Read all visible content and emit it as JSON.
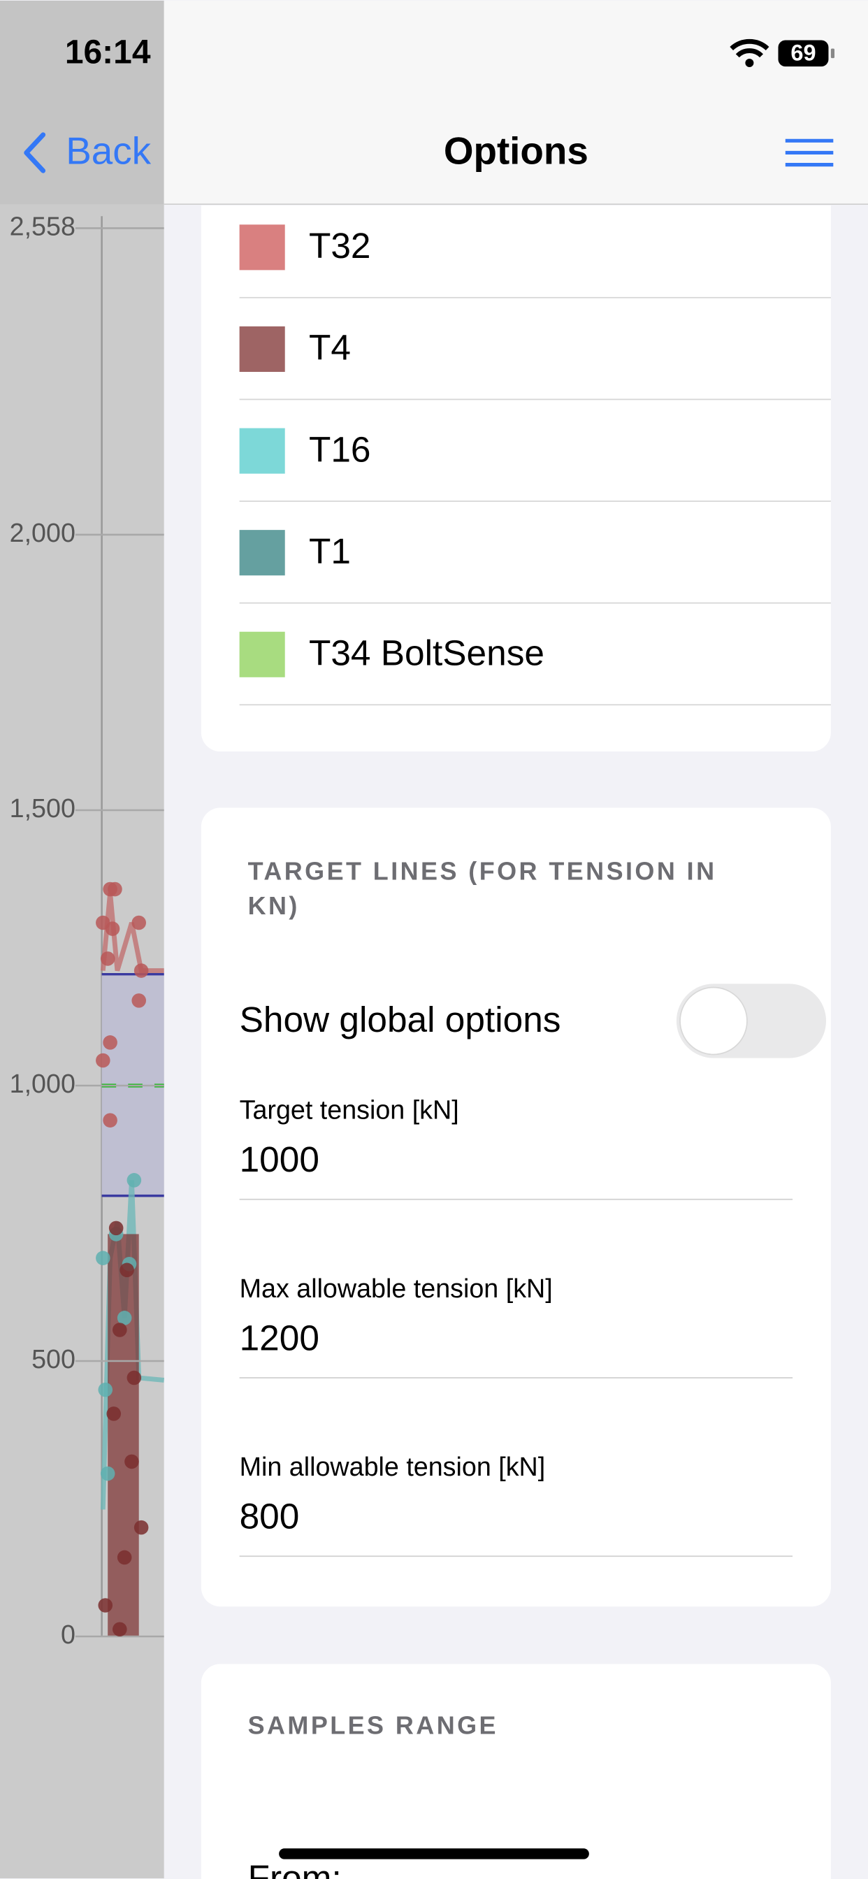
{
  "status_bar": {
    "time": "16:14",
    "battery": "69"
  },
  "nav": {
    "back": "Back",
    "title": "Options"
  },
  "background_chart": {
    "y_tick_labels": [
      "2,558",
      "2,000",
      "1,500",
      "1,000",
      "500",
      "0"
    ]
  },
  "legend": {
    "items": [
      {
        "label": "T32",
        "color": "#d98080"
      },
      {
        "label": "T4",
        "color": "#9e6464"
      },
      {
        "label": "T16",
        "color": "#7dd8d8"
      },
      {
        "label": "T1",
        "color": "#65a0a0"
      },
      {
        "label": "T34 BoltSense",
        "color": "#a8dc80"
      }
    ]
  },
  "target_lines": {
    "header": "TARGET LINES (FOR TENSION IN KN)",
    "toggle_label": "Show global options",
    "show_global_options": false,
    "fields": [
      {
        "label": "Target tension [kN]",
        "value": "1000"
      },
      {
        "label": "Max allowable tension [kN]",
        "value": "1200"
      },
      {
        "label": "Min allowable tension [kN]",
        "value": "800"
      }
    ]
  },
  "samples_range": {
    "header": "SAMPLES RANGE",
    "from_label": "From:"
  }
}
